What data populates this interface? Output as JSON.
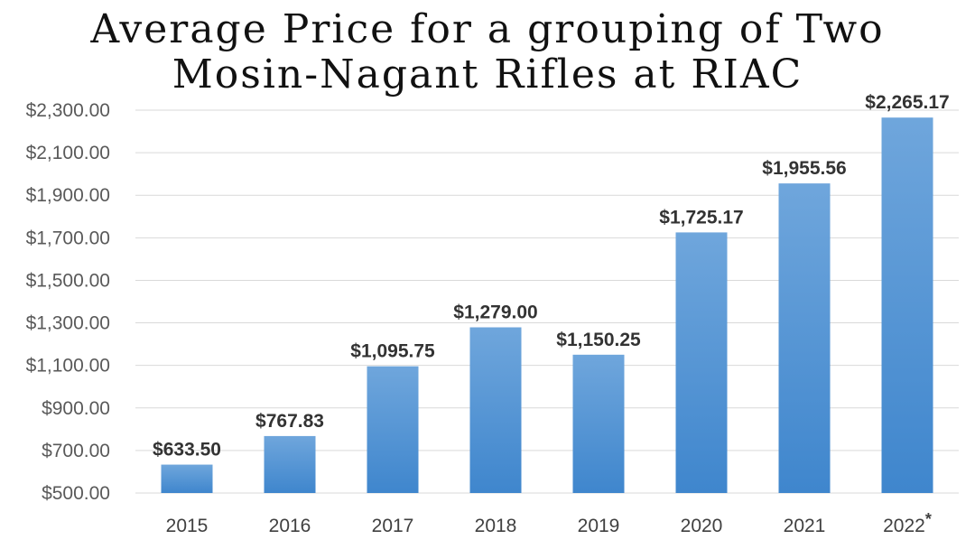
{
  "chart_data": {
    "type": "bar",
    "title": "Average Price for a grouping of Two Mosin-Nagant Rifles at RIAC",
    "title_lines": [
      "Average Price for a grouping of Two",
      "Mosin-Nagant Rifles at RIAC"
    ],
    "categories": [
      "2015",
      "2016",
      "2017",
      "2018",
      "2019",
      "2020",
      "2021",
      "2022"
    ],
    "category_note": [
      "",
      "",
      "",
      "",
      "",
      "",
      "",
      "*"
    ],
    "values": [
      633.5,
      767.83,
      1095.75,
      1279.0,
      1150.25,
      1725.17,
      1955.56,
      2265.17
    ],
    "data_labels": [
      "$633.50",
      "$767.83",
      "$1,095.75",
      "$1,279.00",
      "$1,150.25",
      "$1,725.17",
      "$1,955.56",
      "$2,265.17"
    ],
    "ylim": [
      500,
      2300
    ],
    "yticks": [
      500,
      700,
      900,
      1100,
      1300,
      1500,
      1700,
      1900,
      2100,
      2300
    ],
    "ytick_labels": [
      "$500.00",
      "$700.00",
      "$900.00",
      "$1,100.00",
      "$1,300.00",
      "$1,500.00",
      "$1,700.00",
      "$1,900.00",
      "$2,100.00",
      "$2,300.00"
    ],
    "xlabel": "",
    "ylabel": "",
    "grid": true,
    "legend": "none",
    "colors": {
      "bar_top": "#6fa6dc",
      "bar_bottom": "#3f86cd"
    }
  }
}
